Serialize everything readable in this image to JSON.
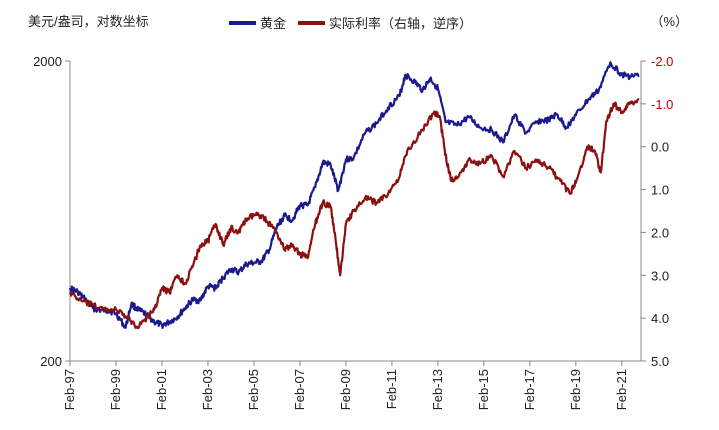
{
  "chart_data": {
    "type": "line",
    "left_axis_label": "美元/盎司，对数坐标",
    "right_axis_unit": "（%）",
    "left_axis": {
      "scale": "log",
      "ticks": [
        2000,
        200
      ],
      "tick_labels": [
        "2000",
        "200"
      ]
    },
    "right_axis": {
      "reversed": true,
      "range": [
        -2.0,
        5.0
      ],
      "ticks": [
        "-2.0",
        "-1.0",
        "0.0",
        "1.0",
        "2.0",
        "3.0",
        "4.0",
        "5.0"
      ]
    },
    "x_ticks": [
      "Feb-97",
      "Feb-99",
      "Feb-01",
      "Feb-03",
      "Feb-05",
      "Feb-07",
      "Feb-09",
      "Feb-11",
      "Feb-13",
      "Feb-15",
      "Feb-17",
      "Feb-19",
      "Feb-21"
    ],
    "legend": "top",
    "grid": false,
    "colors": {
      "gold": "#1a1a8c",
      "real_rate": "#8b1010",
      "right_axis_text": "#c00000"
    },
    "series": [
      {
        "name": "黄金",
        "axis": "left",
        "color": "#1a1a8c",
        "points": [
          [
            "1997-02",
            350
          ],
          [
            "1997-06",
            340
          ],
          [
            "1997-10",
            320
          ],
          [
            "1998-02",
            300
          ],
          [
            "1998-06",
            295
          ],
          [
            "1998-10",
            295
          ],
          [
            "1999-02",
            288
          ],
          [
            "1999-07",
            258
          ],
          [
            "1999-10",
            310
          ],
          [
            "2000-02",
            295
          ],
          [
            "2000-06",
            285
          ],
          [
            "2000-10",
            270
          ],
          [
            "2001-02",
            263
          ],
          [
            "2001-06",
            270
          ],
          [
            "2001-10",
            280
          ],
          [
            "2002-02",
            300
          ],
          [
            "2002-06",
            320
          ],
          [
            "2002-10",
            318
          ],
          [
            "2003-02",
            355
          ],
          [
            "2003-06",
            350
          ],
          [
            "2003-10",
            380
          ],
          [
            "2004-02",
            405
          ],
          [
            "2004-06",
            395
          ],
          [
            "2004-10",
            420
          ],
          [
            "2005-02",
            425
          ],
          [
            "2005-06",
            430
          ],
          [
            "2005-10",
            470
          ],
          [
            "2006-02",
            560
          ],
          [
            "2006-06",
            610
          ],
          [
            "2006-10",
            590
          ],
          [
            "2007-02",
            660
          ],
          [
            "2007-06",
            660
          ],
          [
            "2007-10",
            760
          ],
          [
            "2008-02",
            920
          ],
          [
            "2008-06",
            900
          ],
          [
            "2008-10",
            740
          ],
          [
            "2009-02",
            940
          ],
          [
            "2009-06",
            950
          ],
          [
            "2009-12",
            1150
          ],
          [
            "2010-06",
            1240
          ],
          [
            "2010-12",
            1400
          ],
          [
            "2011-06",
            1530
          ],
          [
            "2011-09",
            1800
          ],
          [
            "2012-02",
            1700
          ],
          [
            "2012-06",
            1600
          ],
          [
            "2012-10",
            1750
          ],
          [
            "2013-02",
            1620
          ],
          [
            "2013-06",
            1250
          ],
          [
            "2013-12",
            1220
          ],
          [
            "2014-06",
            1300
          ],
          [
            "2014-12",
            1200
          ],
          [
            "2015-06",
            1180
          ],
          [
            "2015-12",
            1070
          ],
          [
            "2016-06",
            1320
          ],
          [
            "2016-12",
            1150
          ],
          [
            "2017-06",
            1260
          ],
          [
            "2017-12",
            1270
          ],
          [
            "2018-04",
            1330
          ],
          [
            "2018-09",
            1200
          ],
          [
            "2019-02",
            1320
          ],
          [
            "2019-09",
            1500
          ],
          [
            "2020-02",
            1600
          ],
          [
            "2020-08",
            1980
          ],
          [
            "2021-02",
            1800
          ],
          [
            "2021-06",
            1780
          ],
          [
            "2021-11",
            1790
          ]
        ]
      },
      {
        "name": "实际利率（右轴，逆序）",
        "axis": "right",
        "color": "#8b1010",
        "points": [
          [
            "1997-02",
            3.4
          ],
          [
            "1997-08",
            3.6
          ],
          [
            "1998-02",
            3.7
          ],
          [
            "1998-08",
            3.8
          ],
          [
            "1999-02",
            3.8
          ],
          [
            "1999-08",
            4.0
          ],
          [
            "2000-01",
            4.2
          ],
          [
            "2000-06",
            4.0
          ],
          [
            "2000-10",
            3.8
          ],
          [
            "2001-02",
            3.3
          ],
          [
            "2001-06",
            3.4
          ],
          [
            "2001-10",
            3.0
          ],
          [
            "2002-02",
            3.2
          ],
          [
            "2002-06",
            2.8
          ],
          [
            "2002-10",
            2.3
          ],
          [
            "2003-02",
            2.2
          ],
          [
            "2003-06",
            1.8
          ],
          [
            "2003-10",
            2.3
          ],
          [
            "2004-02",
            1.9
          ],
          [
            "2004-06",
            2.0
          ],
          [
            "2004-10",
            1.7
          ],
          [
            "2005-02",
            1.6
          ],
          [
            "2005-06",
            1.6
          ],
          [
            "2005-10",
            1.8
          ],
          [
            "2006-02",
            2.0
          ],
          [
            "2006-06",
            2.4
          ],
          [
            "2006-10",
            2.3
          ],
          [
            "2007-02",
            2.5
          ],
          [
            "2007-06",
            2.6
          ],
          [
            "2007-10",
            1.8
          ],
          [
            "2008-02",
            1.3
          ],
          [
            "2008-06",
            1.4
          ],
          [
            "2008-09",
            2.3
          ],
          [
            "2008-11",
            3.0
          ],
          [
            "2009-02",
            1.8
          ],
          [
            "2009-06",
            1.5
          ],
          [
            "2009-12",
            1.2
          ],
          [
            "2010-06",
            1.3
          ],
          [
            "2010-12",
            1.1
          ],
          [
            "2011-06",
            0.7
          ],
          [
            "2011-10",
            0.1
          ],
          [
            "2012-06",
            -0.4
          ],
          [
            "2012-12",
            -0.8
          ],
          [
            "2013-03",
            -0.7
          ],
          [
            "2013-06",
            0.2
          ],
          [
            "2013-09",
            0.8
          ],
          [
            "2014-02",
            0.6
          ],
          [
            "2014-06",
            0.3
          ],
          [
            "2014-12",
            0.4
          ],
          [
            "2015-06",
            0.2
          ],
          [
            "2015-12",
            0.7
          ],
          [
            "2016-06",
            0.1
          ],
          [
            "2016-12",
            0.5
          ],
          [
            "2017-06",
            0.3
          ],
          [
            "2017-12",
            0.5
          ],
          [
            "2018-06",
            0.8
          ],
          [
            "2018-11",
            1.1
          ],
          [
            "2019-03",
            0.7
          ],
          [
            "2019-08",
            0.0
          ],
          [
            "2019-12",
            0.1
          ],
          [
            "2020-03",
            0.6
          ],
          [
            "2020-06",
            -0.6
          ],
          [
            "2020-10",
            -1.0
          ],
          [
            "2021-02",
            -0.8
          ],
          [
            "2021-06",
            -1.0
          ],
          [
            "2021-11",
            -1.1
          ]
        ]
      }
    ]
  }
}
